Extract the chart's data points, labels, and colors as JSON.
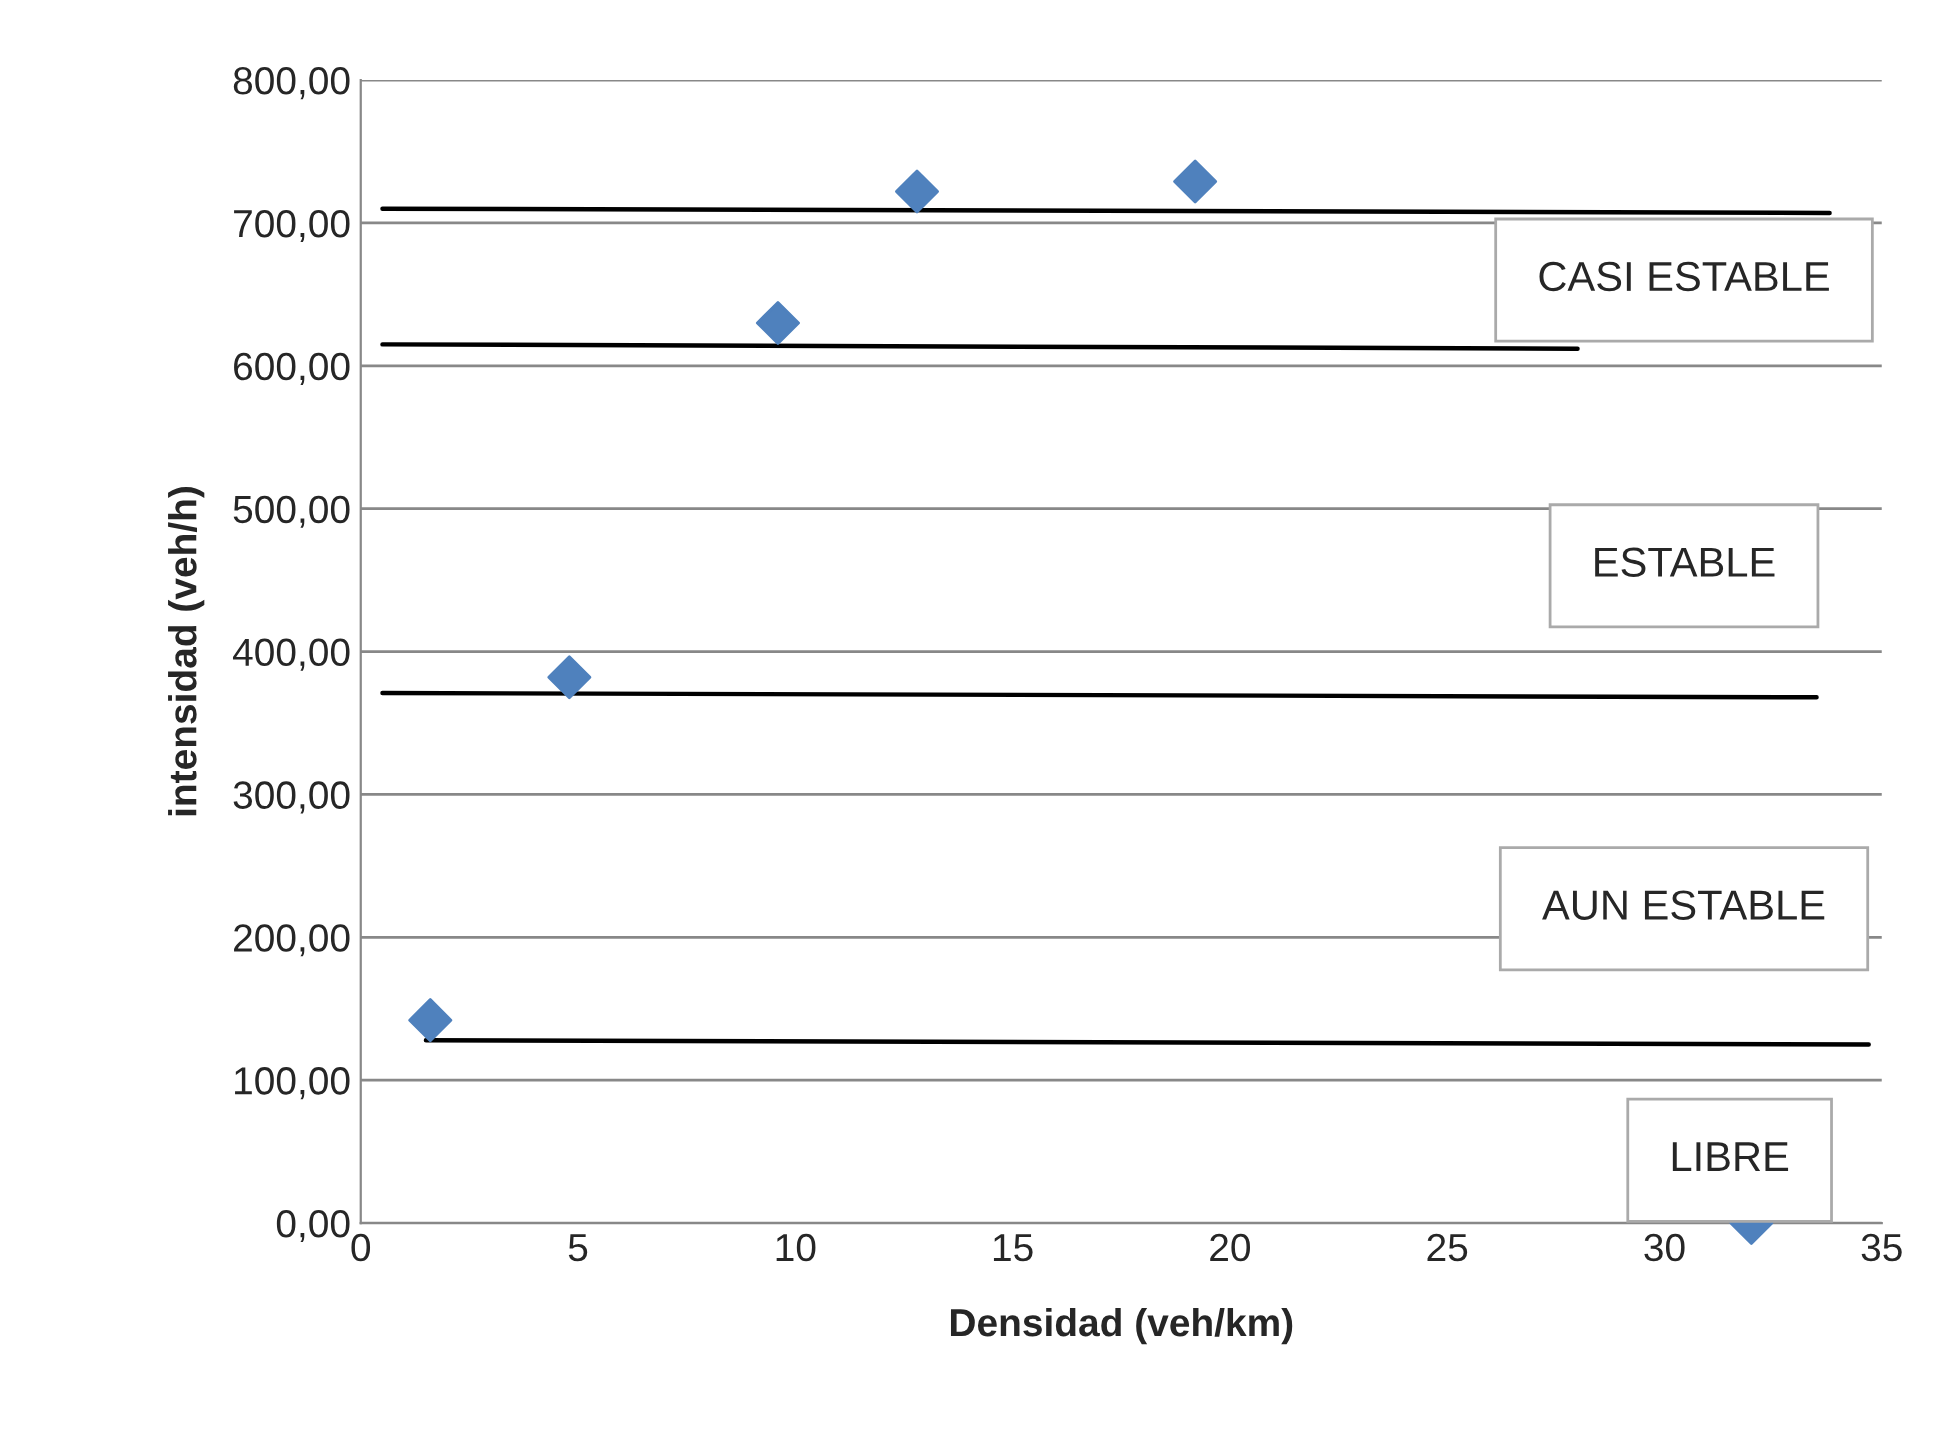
{
  "chart_data": {
    "type": "scatter",
    "xlabel": "Densidad (veh/km)",
    "ylabel": "intensidad (veh/h)",
    "xlim": [
      0,
      35
    ],
    "xticks": [
      0,
      5,
      10,
      15,
      20,
      25,
      30,
      35
    ],
    "ylim": [
      0,
      800
    ],
    "yticks": [
      {
        "value": 0,
        "label": "0,00"
      },
      {
        "value": 100,
        "label": "100,00"
      },
      {
        "value": 200,
        "label": "200,00"
      },
      {
        "value": 300,
        "label": "300,00"
      },
      {
        "value": 400,
        "label": "400,00"
      },
      {
        "value": 500,
        "label": "500,00"
      },
      {
        "value": 600,
        "label": "600,00"
      },
      {
        "value": 700,
        "label": "700,00"
      },
      {
        "value": 800,
        "label": "800,00"
      }
    ],
    "grid": "y",
    "legend": false,
    "series": [
      {
        "color": "#4f81bd",
        "marker": "diamond",
        "x": [
          1.6,
          4.8,
          9.6,
          12.8,
          19.2,
          32
        ],
        "values": [
          142,
          382,
          630,
          722,
          729,
          0
        ]
      },
      {
        "type": "line",
        "color": "#000000",
        "marker": "none",
        "line_style": "solid",
        "x": [
          0.5,
          33.8
        ],
        "values": [
          710,
          707
        ]
      },
      {
        "type": "line",
        "color": "#000000",
        "marker": "none",
        "line_style": "solid",
        "x": [
          0.5,
          28
        ],
        "values": [
          615,
          612
        ]
      },
      {
        "type": "line",
        "color": "#000000",
        "marker": "none",
        "line_style": "solid",
        "x": [
          0.5,
          33.5
        ],
        "values": [
          371,
          368
        ]
      },
      {
        "type": "line",
        "color": "#000000",
        "marker": "none",
        "line_style": "solid",
        "x": [
          1.5,
          34.7
        ],
        "values": [
          128,
          125
        ]
      }
    ],
    "annotations": [
      "CASI ESTABLE",
      "ESTABLE",
      "AUN ESTABLE",
      "LIBRE"
    ]
  }
}
